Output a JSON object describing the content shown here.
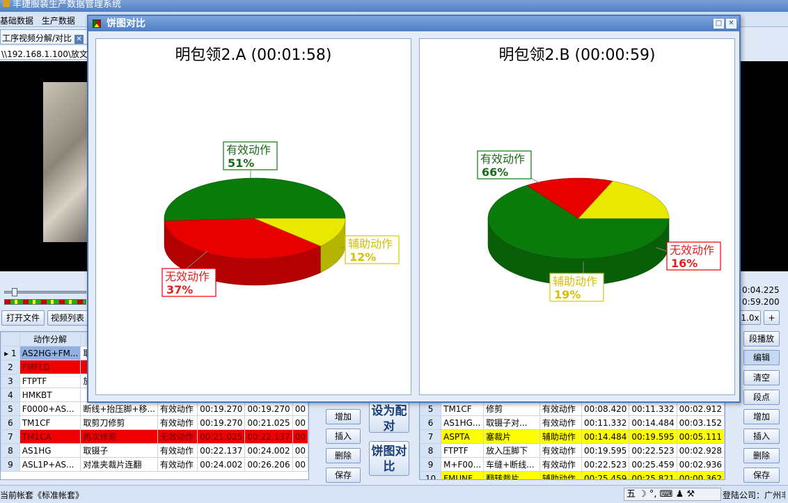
{
  "app": {
    "title": "丰捷服装生产数据管理系统"
  },
  "menu": [
    "基础数据",
    "生产数据"
  ],
  "tab": {
    "label": "工序视频分解/对比",
    "close": "✕"
  },
  "path": "\\\\192.168.1.100\\放文件",
  "times": {
    "start": "0:04.225",
    "end": "0:59.200"
  },
  "buttons": {
    "open_file": "打开文件",
    "video_list": "视频列表",
    "speed": "1.0x",
    "plus": "+",
    "segment_play": "段播放",
    "edit": "编辑",
    "clear": "清空",
    "segment_point": "段点",
    "add": "增加",
    "insert": "插入",
    "delete": "删除",
    "save": "保存",
    "set_pair": "设为配对",
    "pie_compare": "饼图对比"
  },
  "left_table": {
    "header": "动作分解",
    "rows": [
      {
        "n": "1",
        "code": "AS2HG+FM...",
        "name": "取",
        "type": "",
        "t1": "",
        "t2": "",
        "t3": "",
        "style": "sel"
      },
      {
        "n": "2",
        "code": "FMFLD",
        "name": "",
        "type": "",
        "t1": "",
        "t2": "",
        "t3": "",
        "style": "red"
      },
      {
        "n": "3",
        "code": "FTPTF",
        "name": "放",
        "type": "",
        "t1": "",
        "t2": "",
        "t3": "",
        "style": ""
      },
      {
        "n": "4",
        "code": "HMKBT",
        "name": "",
        "type": "",
        "t1": "",
        "t2": "",
        "t3": "",
        "style": ""
      },
      {
        "n": "5",
        "code": "F0000+AS...",
        "name": "断线+抬压脚+移...",
        "type": "有效动作",
        "t1": "00:19.270",
        "t2": "00:19.270",
        "t3": "00",
        "style": ""
      },
      {
        "n": "6",
        "code": "TM1CF",
        "name": "取剪刀修剪",
        "type": "有效动作",
        "t1": "00:19.270",
        "t2": "00:21.025",
        "t3": "00",
        "style": ""
      },
      {
        "n": "7",
        "code": "TM1CA",
        "name": "再次修剪",
        "type": "无效动作",
        "t1": "00:21.025",
        "t2": "00:22.137",
        "t3": "00",
        "style": "red"
      },
      {
        "n": "8",
        "code": "AS1HG",
        "name": "取镊子",
        "type": "有效动作",
        "t1": "00:22.137",
        "t2": "00:24.002",
        "t3": "00",
        "style": ""
      },
      {
        "n": "9",
        "code": "ASL1P+AS...",
        "name": "对准夹裁片连翻",
        "type": "有效动作",
        "t1": "00:24.002",
        "t2": "00:26.206",
        "t3": "00",
        "style": ""
      }
    ]
  },
  "right_table": {
    "rows": [
      {
        "n": "5",
        "code": "TM1CF",
        "name": "修剪",
        "type": "有效动作",
        "t1": "00:08.420",
        "t2": "00:11.332",
        "t3": "00:02.912",
        "style": ""
      },
      {
        "n": "6",
        "code": "AS1HG...",
        "name": "取镊子对...",
        "type": "有效动作",
        "t1": "00:11.332",
        "t2": "00:14.484",
        "t3": "00:03.152",
        "style": ""
      },
      {
        "n": "7",
        "code": "ASPTA",
        "name": "塞裁片",
        "type": "辅助动作",
        "t1": "00:14.484",
        "t2": "00:19.595",
        "t3": "00:05.111",
        "style": "yellow"
      },
      {
        "n": "8",
        "code": "FTPTF",
        "name": "放入压脚下",
        "type": "有效动作",
        "t1": "00:19.595",
        "t2": "00:22.523",
        "t3": "00:02.928",
        "style": ""
      },
      {
        "n": "9",
        "code": "M+F00...",
        "name": "车缝+断线...",
        "type": "有效动作",
        "t1": "00:22.523",
        "t2": "00:25.459",
        "t3": "00:02.936",
        "style": ""
      },
      {
        "n": "10",
        "code": "FMUNF",
        "name": "翻转裁片",
        "type": "辅助动作",
        "t1": "00:25.459",
        "t2": "00:25.821",
        "t3": "00:00.362",
        "style": "yellow"
      }
    ]
  },
  "dialog": {
    "title": "饼图对比"
  },
  "status": {
    "account": "当前帐套《标准帐套》",
    "ime": "五 ☽ °, ⌨ ♟ ⚒",
    "company": "登陆公司：广州丰"
  },
  "colors": {
    "effective": "#0a7a0a",
    "invalid": "#e60000",
    "auxiliary": "#e8e800"
  },
  "chart_data": [
    {
      "type": "pie",
      "title": "明包领2.A (00:01:58)",
      "slices": [
        {
          "label": "有效动作",
          "value": 51,
          "pct": "51%",
          "color": "#0a7a0a"
        },
        {
          "label": "无效动作",
          "value": 37,
          "pct": "37%",
          "color": "#e60000"
        },
        {
          "label": "辅助动作",
          "value": 12,
          "pct": "12%",
          "color": "#e8e800"
        }
      ]
    },
    {
      "type": "pie",
      "title": "明包领2.B (00:00:59)",
      "slices": [
        {
          "label": "有效动作",
          "value": 66,
          "pct": "66%",
          "color": "#0a7a0a"
        },
        {
          "label": "无效动作",
          "value": 16,
          "pct": "16%",
          "color": "#e60000"
        },
        {
          "label": "辅助动作",
          "value": 19,
          "pct": "19%",
          "color": "#e8e800"
        }
      ]
    }
  ]
}
